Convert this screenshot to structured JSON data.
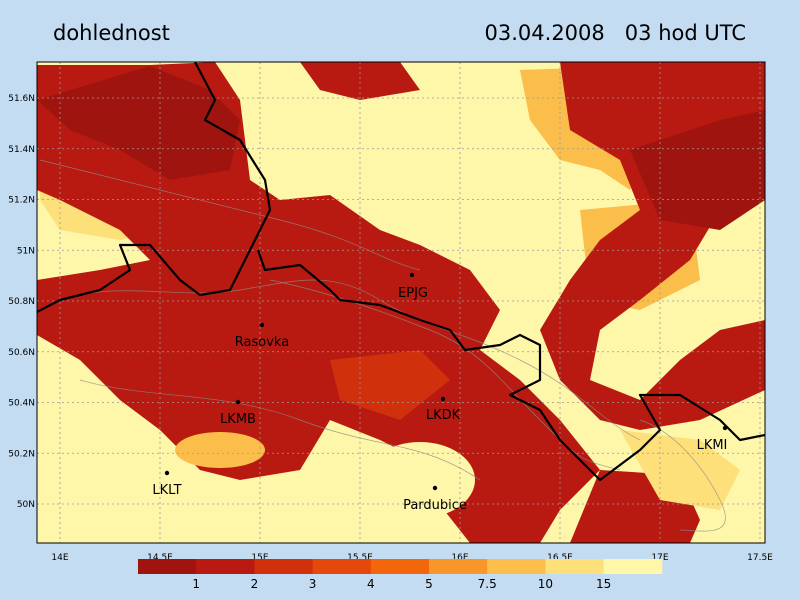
{
  "title": "dohlednost",
  "time": "03.04.2008   03 hod UTC",
  "lon_ticks": [
    "14E",
    "14.5E",
    "15E",
    "15.5E",
    "16E",
    "16.5E",
    "17E",
    "17.5E"
  ],
  "lat_ticks": [
    "51.6N",
    "51.4N",
    "51.2N",
    "51N",
    "50.8N",
    "50.6N",
    "50.4N",
    "50.2N",
    "50N"
  ],
  "stations": [
    "EPJG",
    "Rasovka",
    "LKMB",
    "LKDK",
    "LKMI",
    "LKLT",
    "Pardubice"
  ],
  "colorbar": {
    "colors": [
      "#a01410",
      "#b81a12",
      "#d0300c",
      "#e4480a",
      "#f2660c",
      "#f8962a",
      "#fcbe4a",
      "#fde07a",
      "#fef6a8"
    ],
    "labels": [
      "1",
      "2",
      "3",
      "4",
      "5",
      "7.5",
      "10",
      "15"
    ]
  }
}
